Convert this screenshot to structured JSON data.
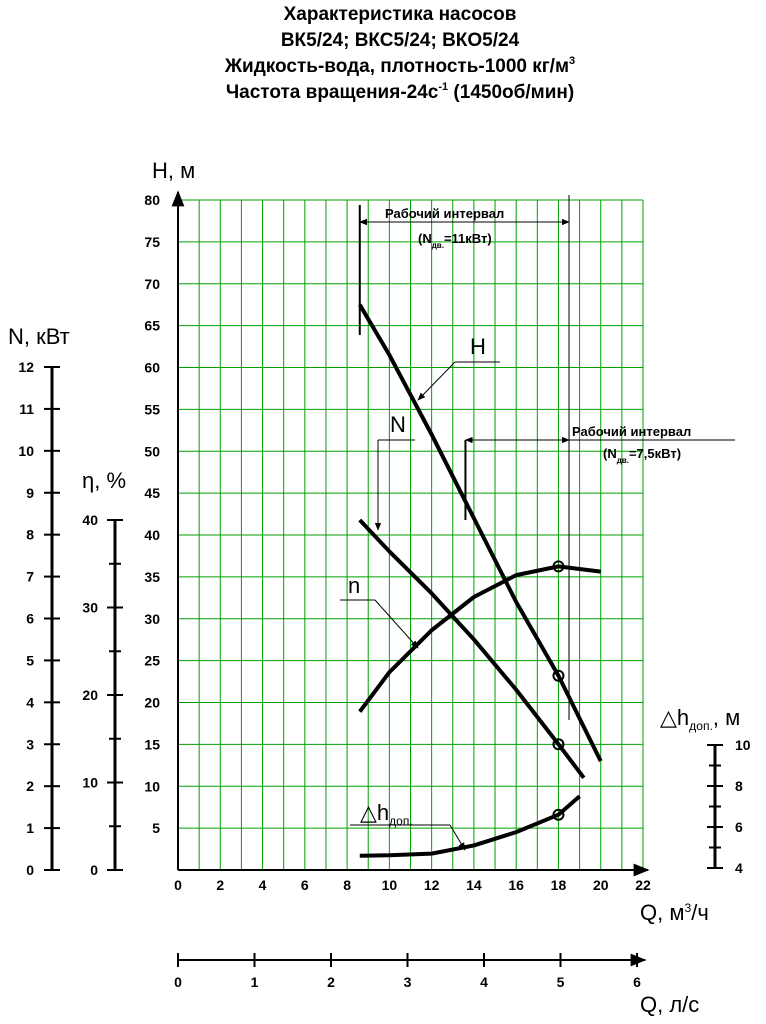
{
  "title_lines": [
    {
      "text": "Характеристика насосов"
    },
    {
      "text": "ВК5/24; ВКС5/24; ВКО5/24"
    },
    {
      "text": "Жидкость-вода, плотность-1000 кг/м",
      "sup": "3"
    },
    {
      "text": "Частота вращения-24с",
      "sup": "-1",
      "after": " (1450об/мин)"
    }
  ],
  "chart_data": {
    "type": "line",
    "x_label": {
      "text": "Q, м",
      "sup": "3",
      "after": "/ч"
    },
    "xlim": [
      0,
      22
    ],
    "xticks": [
      0,
      2,
      4,
      6,
      8,
      10,
      12,
      14,
      16,
      18,
      20,
      22
    ],
    "x_minor_grid": [
      1,
      3,
      5,
      7,
      9,
      11,
      13,
      15,
      17,
      19,
      21
    ],
    "grid": true,
    "grid_color": "#00a000",
    "axes": [
      {
        "id": "h",
        "label": "H, м",
        "lim": [
          0,
          80
        ],
        "ticks": [
          5,
          10,
          15,
          20,
          25,
          30,
          35,
          40,
          45,
          50,
          55,
          60,
          65,
          70,
          75,
          80
        ]
      },
      {
        "id": "n",
        "label": "N, кВт",
        "lim": [
          0,
          12
        ],
        "ticks": [
          0,
          1,
          2,
          3,
          4,
          5,
          6,
          7,
          8,
          9,
          10,
          11,
          12
        ]
      },
      {
        "id": "eta",
        "label": "η, %",
        "lim": [
          0,
          40
        ],
        "ticks": [
          0,
          10,
          20,
          30,
          40
        ],
        "minor_ticks": [
          5,
          15,
          25,
          35
        ]
      },
      {
        "id": "dh",
        "label": {
          "text": "△h",
          "sub": "доп.",
          "after": ", м"
        },
        "lim": [
          4,
          10
        ],
        "ticks": [
          4,
          6,
          8,
          10
        ],
        "minor_ticks": [
          5,
          7,
          9
        ]
      }
    ],
    "x2_label": "Q, л/с",
    "x2lim": [
      0,
      6
    ],
    "x2ticks": [
      0,
      1,
      2,
      3,
      4,
      5,
      6
    ],
    "series": [
      {
        "name": "H",
        "axis": "h",
        "color": "#000000",
        "marker_at": 18,
        "x": [
          8.6,
          10,
          12,
          14,
          16,
          18,
          20
        ],
        "values": [
          67.5,
          61.5,
          52,
          42,
          32,
          23.2,
          13
        ]
      },
      {
        "name": "N",
        "axis": "n",
        "color": "#000000",
        "marker_at": 18,
        "x": [
          8.6,
          10,
          12,
          14,
          16,
          18,
          19.2
        ],
        "values": [
          8.35,
          7.6,
          6.6,
          5.5,
          4.3,
          3.0,
          2.2
        ]
      },
      {
        "name": "n",
        "axis": "eta",
        "color": "#000000",
        "marker_at": 18,
        "x": [
          8.6,
          10,
          12,
          14,
          16,
          18,
          20
        ],
        "values": [
          18.1,
          22.6,
          27.4,
          31.2,
          33.7,
          34.7,
          34.1
        ]
      },
      {
        "name": "△h",
        "name_sub": "доп.",
        "axis": "dh",
        "color": "#000000",
        "marker_at": 18,
        "x": [
          8.6,
          10,
          12,
          14,
          16,
          18,
          19
        ],
        "values": [
          4.6,
          4.62,
          4.7,
          5.1,
          5.75,
          6.6,
          7.5
        ]
      }
    ],
    "ranges": [
      {
        "title": "Рабочий интервал",
        "note": {
          "text": "(N",
          "sub": "дв.",
          "after": "=11кВт)"
        },
        "x": [
          8.6,
          18.5
        ]
      },
      {
        "title": "Рабочий интервал",
        "note": {
          "text": "(N",
          "sub": "дв.",
          "after": "=7,5кВт)"
        },
        "x": [
          13.6,
          18.5
        ]
      }
    ]
  }
}
